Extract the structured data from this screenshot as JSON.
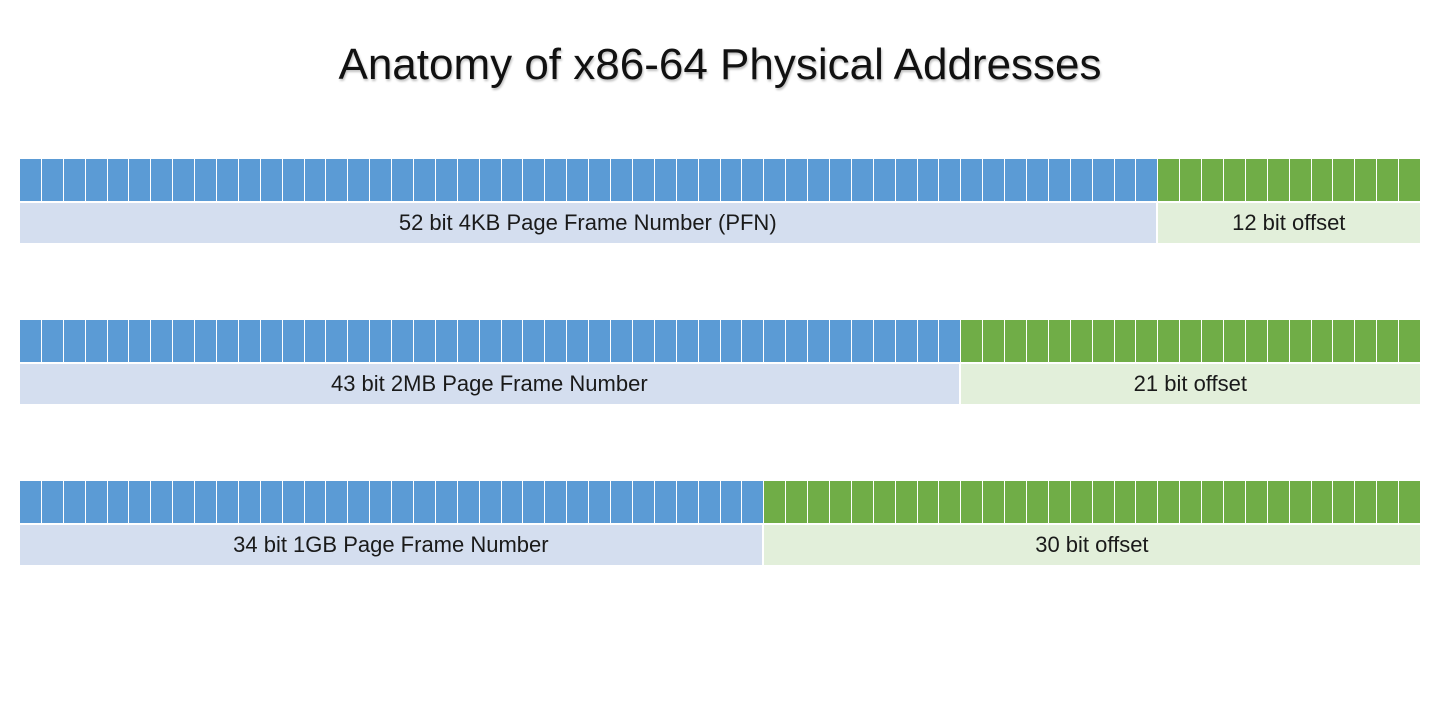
{
  "title": "Anatomy of x86-64 Physical Addresses",
  "colors": {
    "pfn_bit": "#5b9bd5",
    "offset_bit": "#70ad47",
    "pfn_label_bg": "#d4deef",
    "offset_label_bg": "#e2efda"
  },
  "total_bits": 64,
  "rows": [
    {
      "pfn_bits": 52,
      "offset_bits": 12,
      "pfn_label": "52 bit 4KB Page Frame Number (PFN)",
      "offset_label": "12 bit offset"
    },
    {
      "pfn_bits": 43,
      "offset_bits": 21,
      "pfn_label": "43 bit 2MB Page Frame Number",
      "offset_label": "21 bit offset"
    },
    {
      "pfn_bits": 34,
      "offset_bits": 30,
      "pfn_label": "34 bit 1GB Page Frame Number",
      "offset_label": "30 bit offset"
    }
  ]
}
